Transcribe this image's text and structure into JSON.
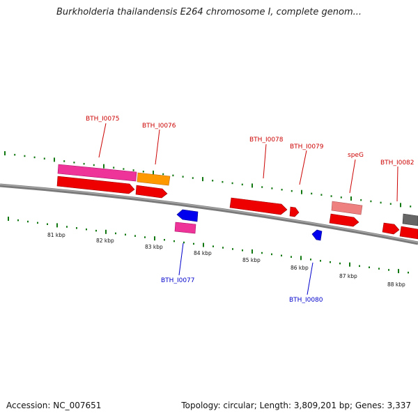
{
  "title": "Burkholderia thailandensis E264 chromosome I, complete genom...",
  "footer": {
    "accession": "Accession: NC_007651",
    "summary": "Topology: circular; Length: 3,809,201 bp; Genes: 3,337"
  },
  "colors": {
    "forward_cds": "#ee0000",
    "reverse_cds": "#0000ee",
    "rna_pink": "#ee3399",
    "orange": "#ff9900",
    "light_red": "#ee8080",
    "gray": "#666666",
    "tick": "#117711",
    "backbone": "#7a7a7a",
    "label_red": "#cc0000",
    "label_blue": "#0000cc"
  },
  "scale_labels": [
    "81 kbp",
    "82 kbp",
    "83 kbp",
    "84 kbp",
    "85 kbp",
    "86 kbp",
    "87 kbp",
    "88 kbp"
  ],
  "gene_labels": {
    "BTH_I0075": "BTH_I0075",
    "BTH_I0076": "BTH_I0076",
    "BTH_I0077": "BTH_I0077",
    "BTH_I0078": "BTH_I0078",
    "BTH_I0079": "BTH_I0079",
    "BTH_I0080": "BTH_I0080",
    "speG": "speG",
    "BTH_I0082": "BTH_I0082"
  }
}
